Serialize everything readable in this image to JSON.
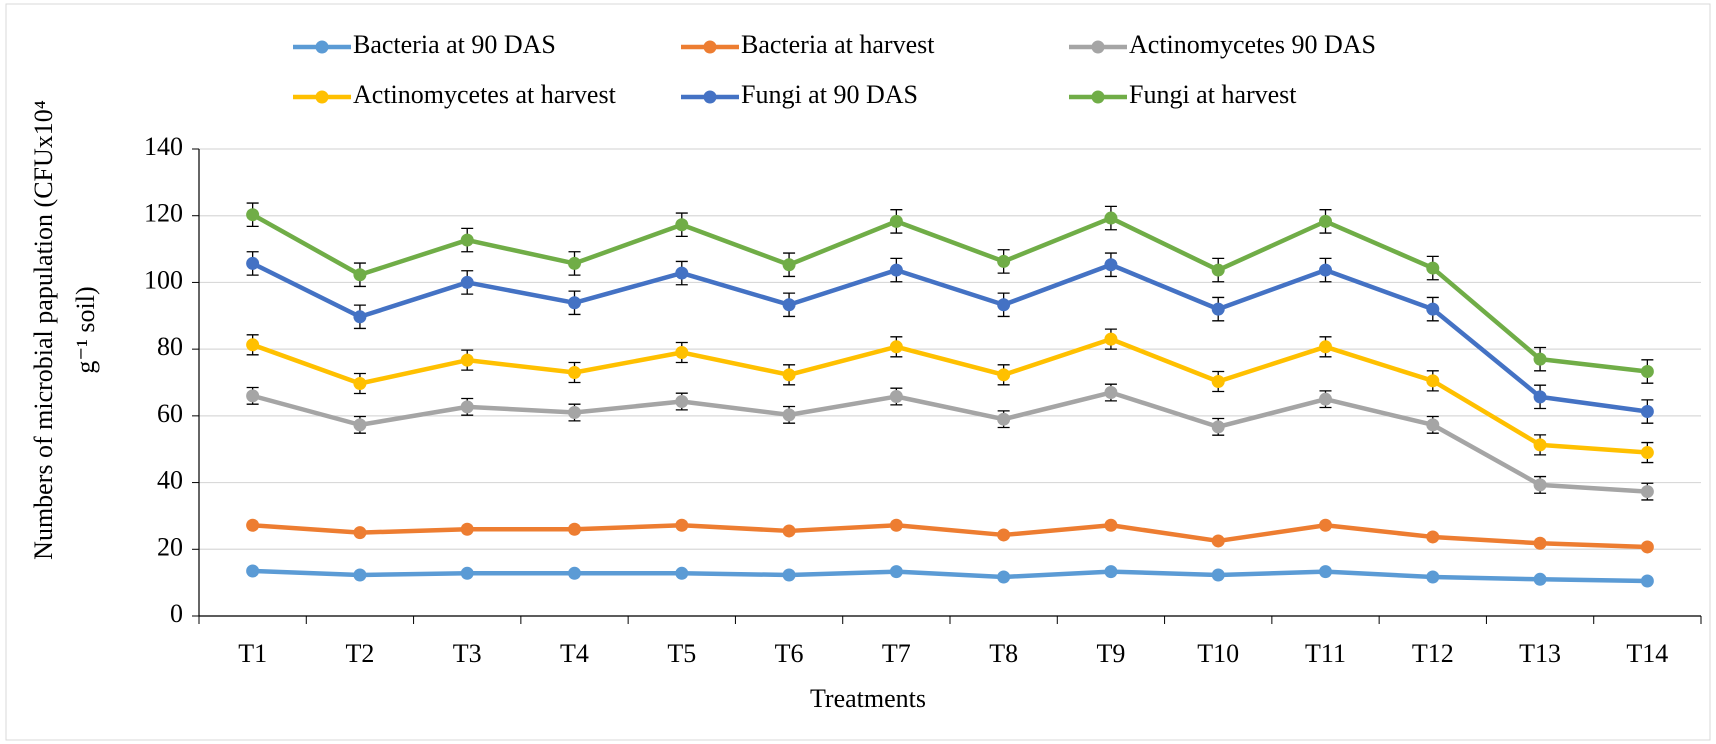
{
  "chart_data": {
    "type": "line",
    "ylabel": [
      "Numbers of microbial papulation (CFUx10⁴",
      "g⁻¹ soil)"
    ],
    "xlabel": "Treatments",
    "categories": [
      "T1",
      "T2",
      "T3",
      "T4",
      "T5",
      "T6",
      "T7",
      "T8",
      "T9",
      "T10",
      "T11",
      "T12",
      "T13",
      "T14"
    ],
    "ylim": [
      0,
      140
    ],
    "yticks": [
      0,
      20,
      40,
      60,
      80,
      100,
      120,
      140
    ],
    "grid": true,
    "series": [
      {
        "name": "Bacteria at 90 DAS",
        "color": "#5b9bd5",
        "values": [
          13.5,
          12.3,
          12.8,
          12.8,
          12.8,
          12.3,
          13.3,
          11.7,
          13.3,
          12.3,
          13.3,
          11.7,
          11,
          10.5
        ]
      },
      {
        "name": "Bacteria at harvest",
        "color": "#ed7d31",
        "values": [
          27.2,
          25,
          26,
          26,
          27.2,
          25.5,
          27.2,
          24.3,
          27.2,
          22.5,
          27.2,
          23.7,
          21.8,
          20.7
        ]
      },
      {
        "name": "Actinomycetes 90 DAS",
        "color": "#a5a5a5",
        "values": [
          66,
          57.3,
          62.7,
          61,
          64.3,
          60.3,
          65.8,
          59,
          67,
          56.7,
          65,
          57.3,
          39.3,
          37.3
        ],
        "errors": [
          2.5,
          2.5,
          2.5,
          2.5,
          2.5,
          2.5,
          2.5,
          2.5,
          2.5,
          2.5,
          2.5,
          2.5,
          2.5,
          2.5
        ]
      },
      {
        "name": "Actinomycetes at harvest",
        "color": "#ffc000",
        "values": [
          81.3,
          69.7,
          76.7,
          73,
          79,
          72.3,
          80.7,
          72.3,
          83,
          70.3,
          80.7,
          70.5,
          51.3,
          49
        ],
        "errors": [
          3,
          3,
          3,
          3,
          3,
          3,
          3,
          3,
          3,
          3,
          3,
          3,
          3,
          3
        ]
      },
      {
        "name": "Fungi at 90 DAS",
        "color": "#4472c4",
        "values": [
          105.7,
          89.7,
          100,
          93.9,
          102.8,
          93.3,
          103.7,
          93.3,
          105.3,
          92,
          103.7,
          92,
          65.7,
          61.3
        ],
        "errors": [
          3.5,
          3.5,
          3.5,
          3.5,
          3.5,
          3.5,
          3.5,
          3.5,
          3.5,
          3.5,
          3.5,
          3.5,
          3.5,
          3.5
        ]
      },
      {
        "name": "Fungi at harvest",
        "color": "#70ad47",
        "values": [
          120.3,
          102.3,
          112.7,
          105.7,
          117.3,
          105.3,
          118.3,
          106.3,
          119.3,
          103.7,
          118.3,
          104.3,
          77,
          73.3
        ],
        "errors": [
          3.5,
          3.5,
          3.5,
          3.5,
          3.5,
          3.5,
          3.5,
          3.5,
          3.5,
          3.5,
          3.5,
          3.5,
          3.5,
          3.5
        ]
      }
    ]
  }
}
